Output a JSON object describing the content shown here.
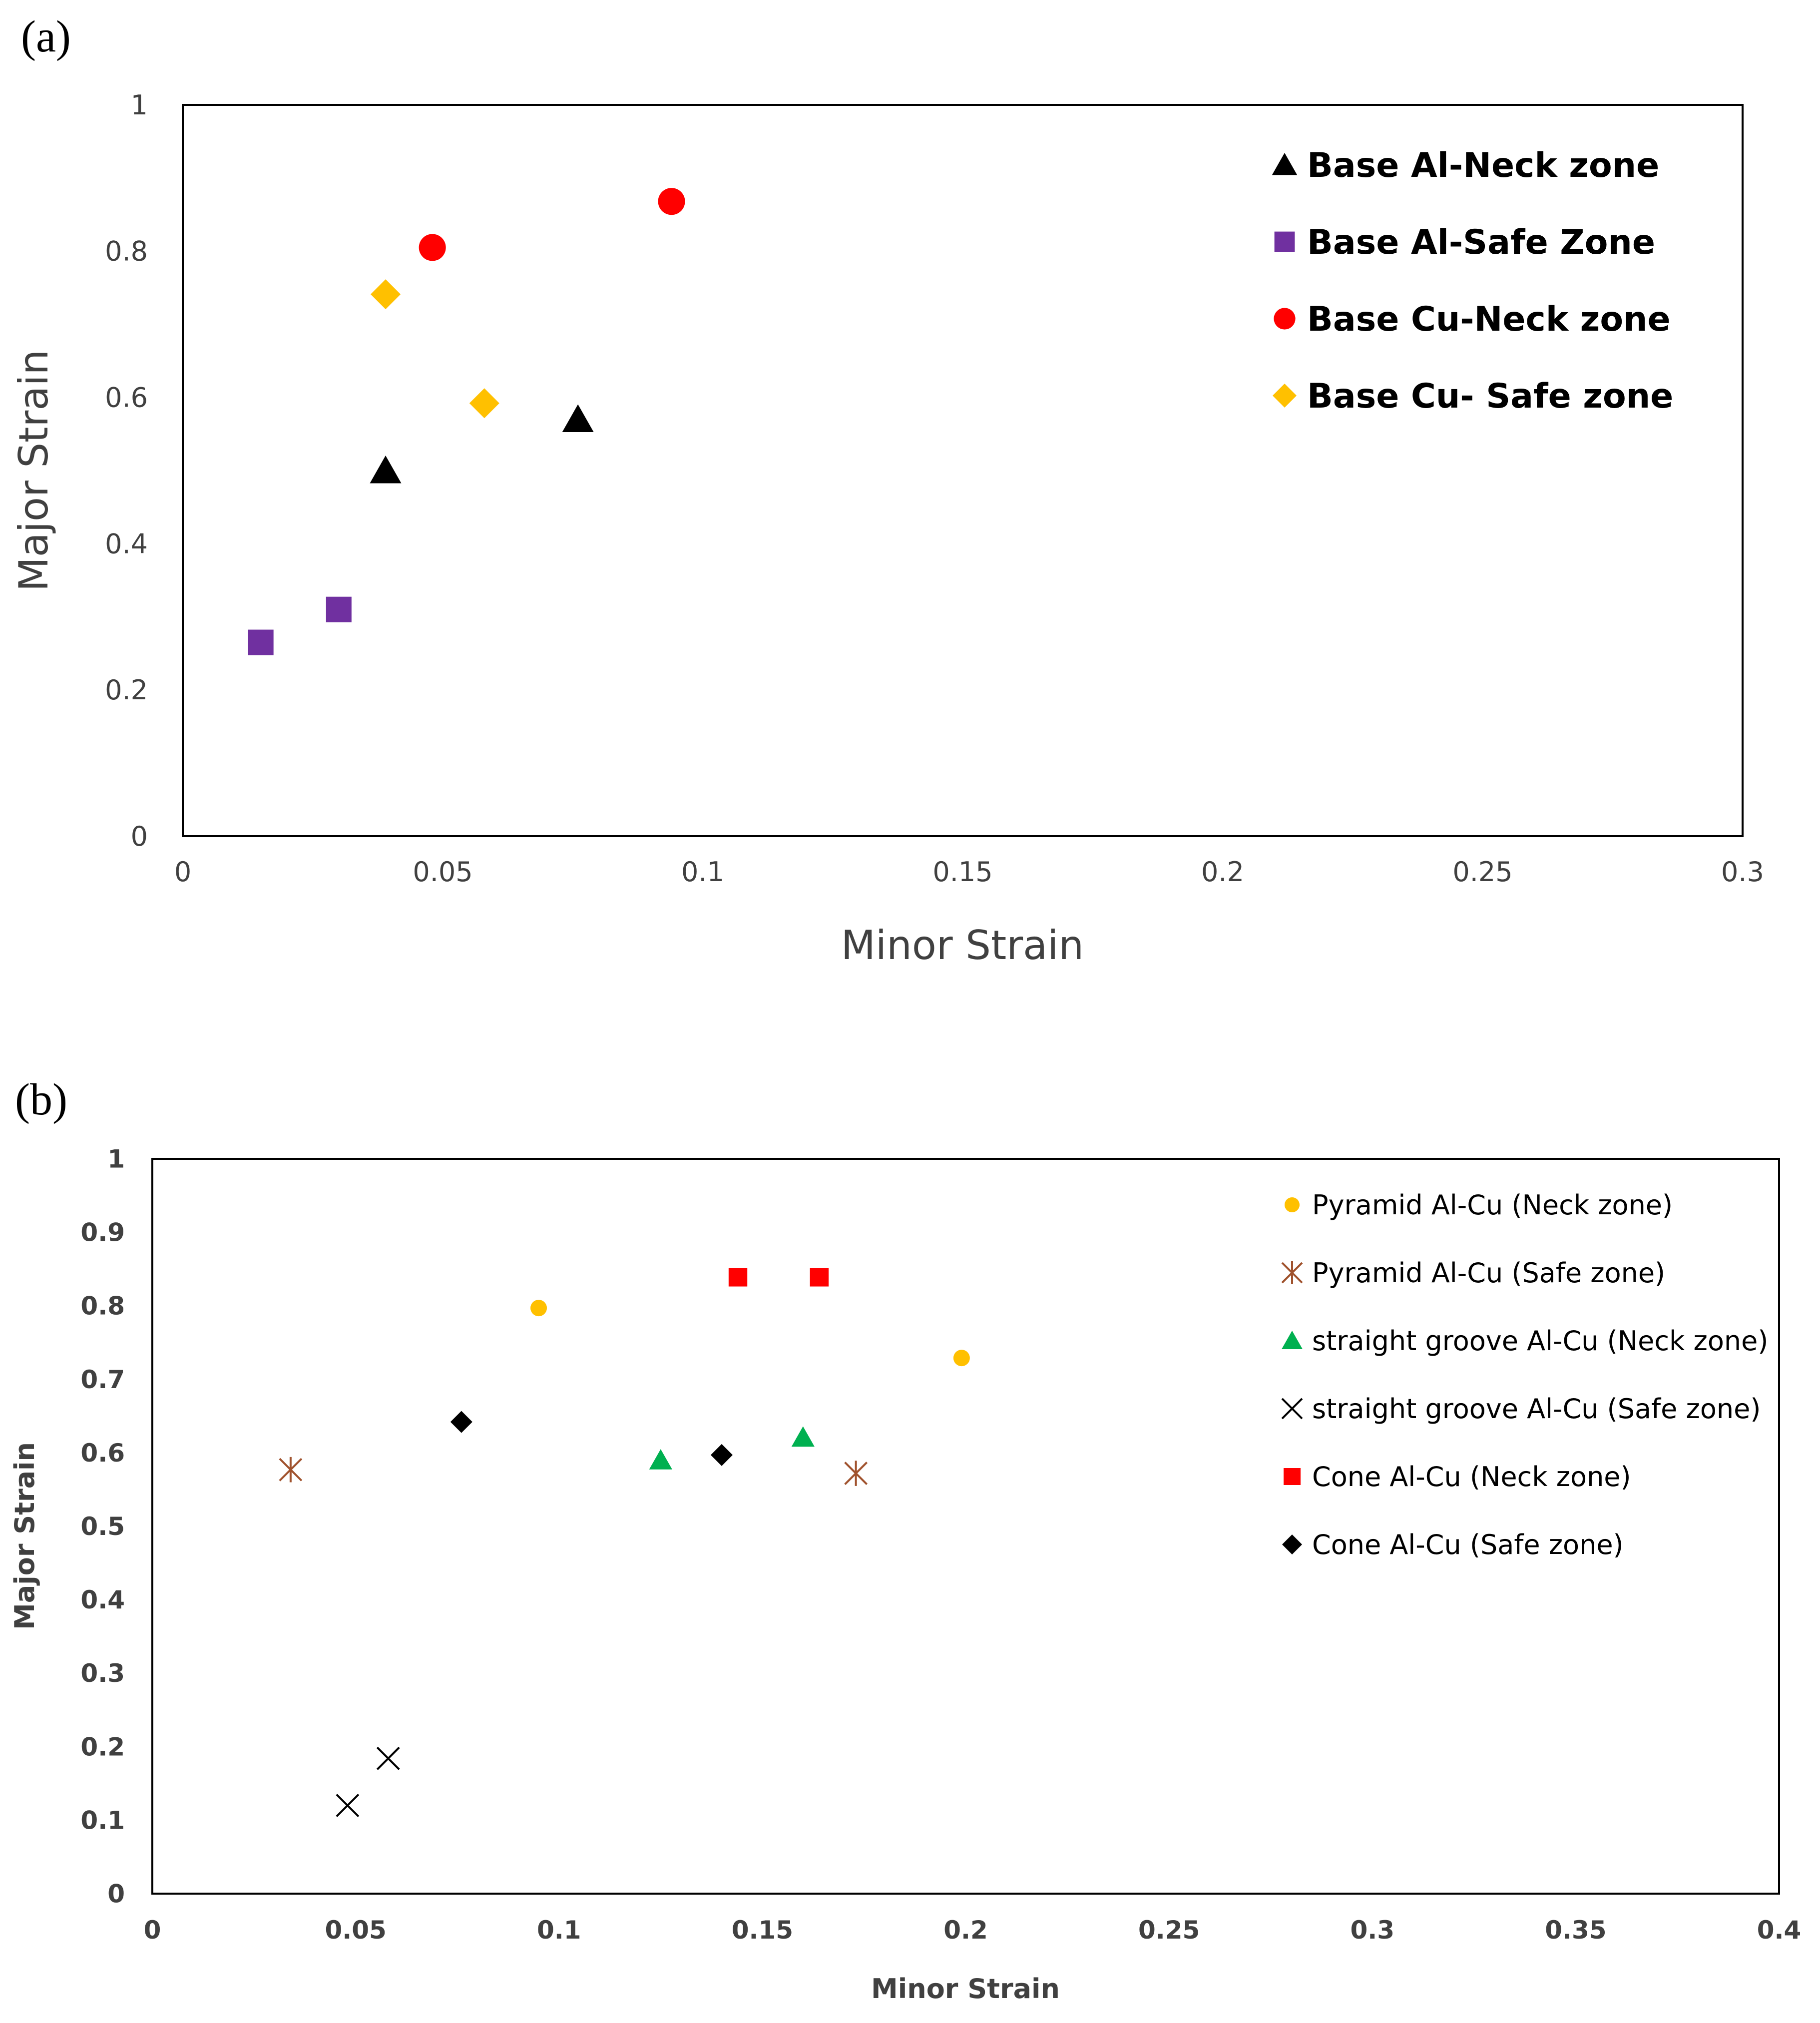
{
  "panels": {
    "a_label": "(a)",
    "b_label": "(b)"
  },
  "chart_data": [
    {
      "id": "a",
      "type": "scatter",
      "title": "",
      "xlabel": "Minor Strain",
      "ylabel": "Major Strain",
      "xlim": [
        0,
        0.3
      ],
      "ylim": [
        0,
        1
      ],
      "xticks": [
        0,
        0.05,
        0.1,
        0.15,
        0.2,
        0.25,
        0.3
      ],
      "xtick_labels": [
        "0",
        "0.05",
        "0.1",
        "0.15",
        "0.2",
        "0.25",
        "0.3"
      ],
      "yticks": [
        0,
        0.2,
        0.4,
        0.6,
        0.8,
        1
      ],
      "ytick_labels": [
        "0",
        "0.2",
        "0.4",
        "0.6",
        "0.8",
        "1"
      ],
      "grid": false,
      "legend_position": "top-right",
      "series": [
        {
          "name": "Base Al-Neck zone",
          "marker": "triangle",
          "color": "#000000",
          "points": [
            [
              0.039,
              0.5
            ],
            [
              0.076,
              0.57
            ]
          ]
        },
        {
          "name": "Base Al-Safe Zone",
          "marker": "square",
          "color": "#7030a0",
          "points": [
            [
              0.015,
              0.265
            ],
            [
              0.03,
              0.31
            ]
          ]
        },
        {
          "name": "Base Cu-Neck zone",
          "marker": "circle",
          "color": "#ff0000",
          "points": [
            [
              0.048,
              0.805
            ],
            [
              0.094,
              0.868
            ]
          ]
        },
        {
          "name": "Base Cu- Safe zone",
          "marker": "diamond",
          "color": "#ffc000",
          "points": [
            [
              0.039,
              0.741
            ],
            [
              0.058,
              0.592
            ]
          ]
        }
      ]
    },
    {
      "id": "b",
      "type": "scatter",
      "title": "",
      "xlabel": "Minor Strain",
      "ylabel": "Major Strain",
      "xlim": [
        0,
        0.4
      ],
      "ylim": [
        0,
        1
      ],
      "xticks": [
        0,
        0.05,
        0.1,
        0.15,
        0.2,
        0.25,
        0.3,
        0.35,
        0.4
      ],
      "xtick_labels": [
        "0",
        "0.05",
        "0.1",
        "0.15",
        "0.2",
        "0.25",
        "0.3",
        "0.35",
        "0.4"
      ],
      "yticks": [
        0,
        0.1,
        0.2,
        0.3,
        0.4,
        0.5,
        0.6,
        0.7,
        0.8,
        0.9,
        1
      ],
      "ytick_labels": [
        "0",
        "0.1",
        "0.2",
        "0.3",
        "0.4",
        "0.5",
        "0.6",
        "0.7",
        "0.8",
        "0.9",
        "1"
      ],
      "grid": false,
      "legend_position": "top-right",
      "series": [
        {
          "name": "Pyramid Al-Cu (Neck zone)",
          "marker": "circle-small",
          "color": "#ffc000",
          "points": [
            [
              0.095,
              0.797
            ],
            [
              0.199,
              0.729
            ]
          ]
        },
        {
          "name": "Pyramid Al-Cu (Safe zone)",
          "marker": "asterisk",
          "color": "#a0522d",
          "points": [
            [
              0.034,
              0.577
            ],
            [
              0.173,
              0.572
            ]
          ]
        },
        {
          "name": "straight groove Al-Cu (Neck zone)",
          "marker": "triangle",
          "color": "#00b050",
          "points": [
            [
              0.125,
              0.59
            ],
            [
              0.16,
              0.621
            ]
          ]
        },
        {
          "name": "straight groove Al-Cu (Safe zone)",
          "marker": "x",
          "color": "#000000",
          "points": [
            [
              0.048,
              0.12
            ],
            [
              0.058,
              0.184
            ]
          ]
        },
        {
          "name": "Cone Al-Cu (Neck zone)",
          "marker": "square",
          "color": "#ff0000",
          "points": [
            [
              0.144,
              0.839
            ],
            [
              0.164,
              0.839
            ]
          ]
        },
        {
          "name": "Cone Al-Cu (Safe zone)",
          "marker": "diamond",
          "color": "#000000",
          "points": [
            [
              0.076,
              0.642
            ],
            [
              0.14,
              0.597
            ]
          ]
        }
      ]
    }
  ]
}
